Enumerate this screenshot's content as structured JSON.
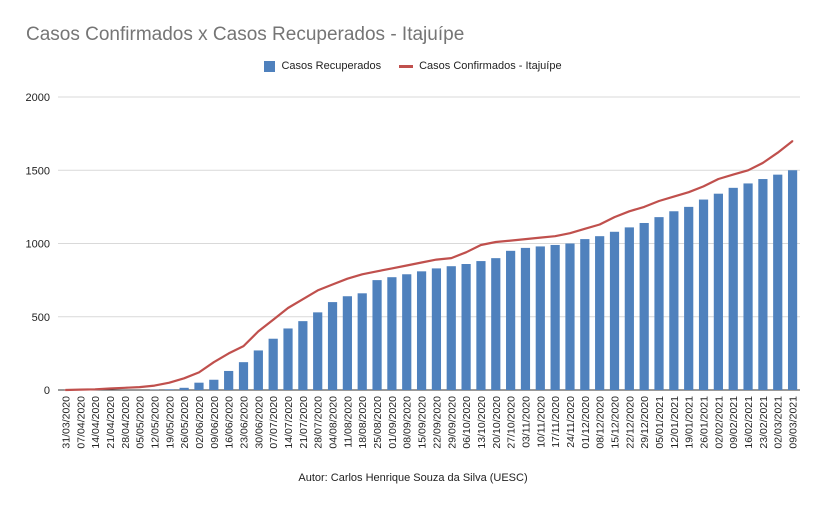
{
  "chart_data": {
    "type": "bar",
    "title": "Casos Confirmados x Casos Recuperados - Itajuípe",
    "subtitle": "",
    "xlabel": "",
    "ylabel": "",
    "ylim": [
      0,
      2000
    ],
    "yticks": [
      0,
      500,
      1000,
      1500,
      2000
    ],
    "grid": true,
    "legend_position": "top-center",
    "x": [
      "31/03/2020",
      "07/04/2020",
      "14/04/2020",
      "21/04/2020",
      "28/04/2020",
      "05/05/2020",
      "12/05/2020",
      "19/05/2020",
      "26/05/2020",
      "02/06/2020",
      "09/06/2020",
      "16/06/2020",
      "23/06/2020",
      "30/06/2020",
      "07/07/2020",
      "14/07/2020",
      "21/07/2020",
      "28/07/2020",
      "04/08/2020",
      "11/08/2020",
      "18/08/2020",
      "25/08/2020",
      "01/09/2020",
      "08/09/2020",
      "15/09/2020",
      "22/09/2020",
      "29/09/2020",
      "06/10/2020",
      "13/10/2020",
      "20/10/2020",
      "27/10/2020",
      "03/11/2020",
      "10/11/2020",
      "17/11/2020",
      "24/11/2020",
      "01/12/2020",
      "08/12/2020",
      "15/12/2020",
      "22/12/2020",
      "29/12/2020",
      "05/01/2021",
      "12/01/2021",
      "19/01/2021",
      "26/01/2021",
      "02/02/2021",
      "09/02/2021",
      "16/02/2021",
      "23/02/2021",
      "02/03/2021",
      "09/03/2021"
    ],
    "series": [
      {
        "name": "Casos Recuperados",
        "kind": "bar",
        "color": "#4f81bd",
        "values": [
          0,
          0,
          0,
          0,
          0,
          0,
          2,
          5,
          15,
          50,
          70,
          130,
          190,
          270,
          350,
          420,
          470,
          530,
          600,
          640,
          660,
          750,
          770,
          790,
          810,
          830,
          845,
          860,
          880,
          900,
          950,
          970,
          980,
          990,
          1000,
          1030,
          1050,
          1080,
          1110,
          1140,
          1180,
          1220,
          1250,
          1300,
          1340,
          1380,
          1410,
          1440,
          1470,
          1500
        ]
      },
      {
        "name": "Casos Confirmados - Itajuípe",
        "kind": "line",
        "color": "#c0504d",
        "values": [
          0,
          3,
          5,
          10,
          15,
          20,
          30,
          50,
          80,
          120,
          190,
          250,
          300,
          400,
          480,
          560,
          620,
          680,
          720,
          760,
          790,
          810,
          830,
          850,
          870,
          890,
          900,
          940,
          990,
          1010,
          1020,
          1030,
          1040,
          1050,
          1070,
          1100,
          1130,
          1180,
          1220,
          1250,
          1290,
          1320,
          1350,
          1390,
          1440,
          1470,
          1500,
          1550,
          1620,
          1700
        ]
      }
    ]
  },
  "footer": {
    "author": "Autor: Carlos Henrique Souza da Silva (UESC)"
  }
}
